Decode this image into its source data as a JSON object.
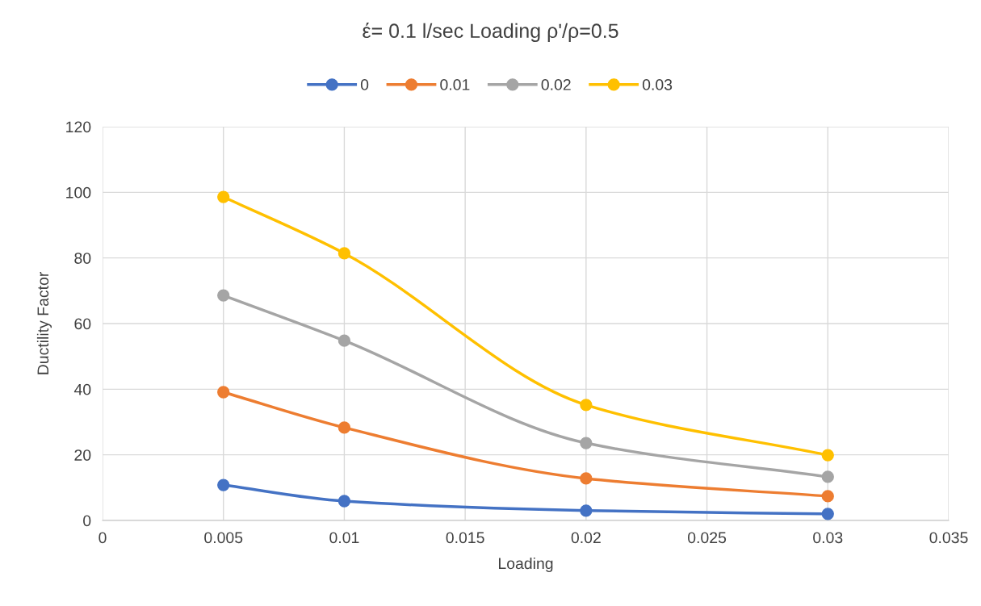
{
  "chart_data": {
    "type": "line",
    "title": "έ= 0.1 l/sec Loading ρ'/ρ=0.5",
    "xlabel": "Loading",
    "ylabel": "Ductility Factor",
    "x": [
      0.005,
      0.01,
      0.02,
      0.03
    ],
    "series": [
      {
        "name": "0",
        "color": "#4472c4",
        "values": [
          10.8,
          5.9,
          3.0,
          2.0
        ]
      },
      {
        "name": "0.01",
        "color": "#ed7d31",
        "values": [
          39.1,
          28.3,
          12.8,
          7.4
        ]
      },
      {
        "name": "0.02",
        "color": "#a5a5a5",
        "values": [
          68.6,
          54.8,
          23.6,
          13.3
        ]
      },
      {
        "name": "0.03",
        "color": "#ffc000",
        "values": [
          98.6,
          81.4,
          35.2,
          19.9
        ]
      }
    ],
    "xlim": [
      0,
      0.035
    ],
    "xticks": [
      0,
      0.005,
      0.01,
      0.015,
      0.02,
      0.025,
      0.03,
      0.035
    ],
    "ylim": [
      0,
      120
    ],
    "yticks": [
      0,
      20,
      40,
      60,
      80,
      100,
      120
    ],
    "grid": true,
    "legend": "top",
    "marker": "circle",
    "line_style": "solid"
  }
}
